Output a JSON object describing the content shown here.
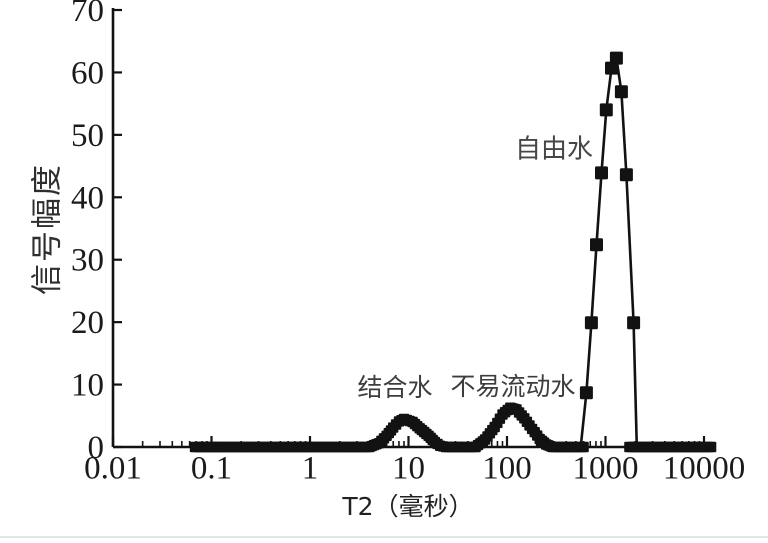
{
  "chart_data": {
    "type": "line",
    "title": "",
    "xlabel": "T2（毫秒）",
    "ylabel": "信号幅度",
    "x_scale": "log",
    "xlim": [
      0.01,
      11800
    ],
    "ylim": [
      0,
      70
    ],
    "x_ticks": [
      0.01,
      0.1,
      1,
      10,
      100,
      1000,
      10000
    ],
    "x_tick_labels": [
      "0.01",
      "0.1",
      "1",
      "10",
      "100",
      "1000",
      "10000"
    ],
    "y_ticks": [
      0,
      10,
      20,
      30,
      40,
      50,
      60,
      70
    ],
    "grid": false,
    "legend": "none",
    "line_color": "#121212",
    "marker": "filled-square",
    "annotations": [
      {
        "id": "bound-water",
        "label": "结合水",
        "t2": 7.3,
        "amplitude": 9.8
      },
      {
        "id": "irreducible-water",
        "label": "不易流动水",
        "t2": 115,
        "amplitude": 9.9
      },
      {
        "id": "free-water",
        "label": "自由水",
        "t2": 300,
        "amplitude": 48
      }
    ],
    "peaks": [
      {
        "label": "结合水",
        "t2_range": [
          4,
          24
        ],
        "t2_peak": 9,
        "amplitude_peak": 4.5
      },
      {
        "label": "不易流动水",
        "t2_range": [
          48,
          290
        ],
        "t2_peak": 110,
        "amplitude_peak": 6.3
      },
      {
        "label": "自由水",
        "t2_range": [
          560,
          2080
        ],
        "t2_peak": 1250,
        "amplitude_peak": 62.3
      }
    ],
    "baseline_curve": [
      [
        0.068,
        0
      ],
      [
        4,
        0
      ],
      [
        5,
        0.6
      ],
      [
        6,
        1.8
      ],
      [
        7,
        3.1
      ],
      [
        8,
        4.1
      ],
      [
        9,
        4.5
      ],
      [
        11,
        4.0
      ],
      [
        13,
        3.0
      ],
      [
        16,
        1.8
      ],
      [
        18.5,
        0.8
      ],
      [
        21,
        0.2
      ],
      [
        24,
        0
      ],
      [
        48,
        0
      ],
      [
        60,
        1.2
      ],
      [
        75,
        3.2
      ],
      [
        90,
        5.2
      ],
      [
        108,
        6.3
      ],
      [
        125,
        6.0
      ],
      [
        150,
        4.6
      ],
      [
        180,
        2.9
      ],
      [
        215,
        1.3
      ],
      [
        250,
        0.4
      ],
      [
        290,
        0
      ],
      [
        600,
        0
      ]
    ],
    "tail_curve": [
      [
        1750,
        0
      ],
      [
        11800,
        0
      ]
    ],
    "free_water_line": [
      [
        560,
        0
      ],
      [
        640,
        8.7
      ],
      [
        720,
        19.9
      ],
      [
        810,
        32.4
      ],
      [
        910,
        43.9
      ],
      [
        1020,
        54.0
      ],
      [
        1150,
        60.7
      ],
      [
        1290,
        62.3
      ],
      [
        1450,
        56.9
      ],
      [
        1630,
        43.6
      ],
      [
        1930,
        19.9
      ],
      [
        2080,
        0
      ]
    ],
    "free_water_markers": [
      [
        640,
        8.7
      ],
      [
        720,
        19.9
      ],
      [
        810,
        32.4
      ],
      [
        910,
        43.9
      ],
      [
        1020,
        54.0
      ],
      [
        1150,
        60.7
      ],
      [
        1290,
        62.3
      ],
      [
        1450,
        56.9
      ],
      [
        1630,
        43.6
      ],
      [
        1930,
        19.9
      ]
    ]
  }
}
